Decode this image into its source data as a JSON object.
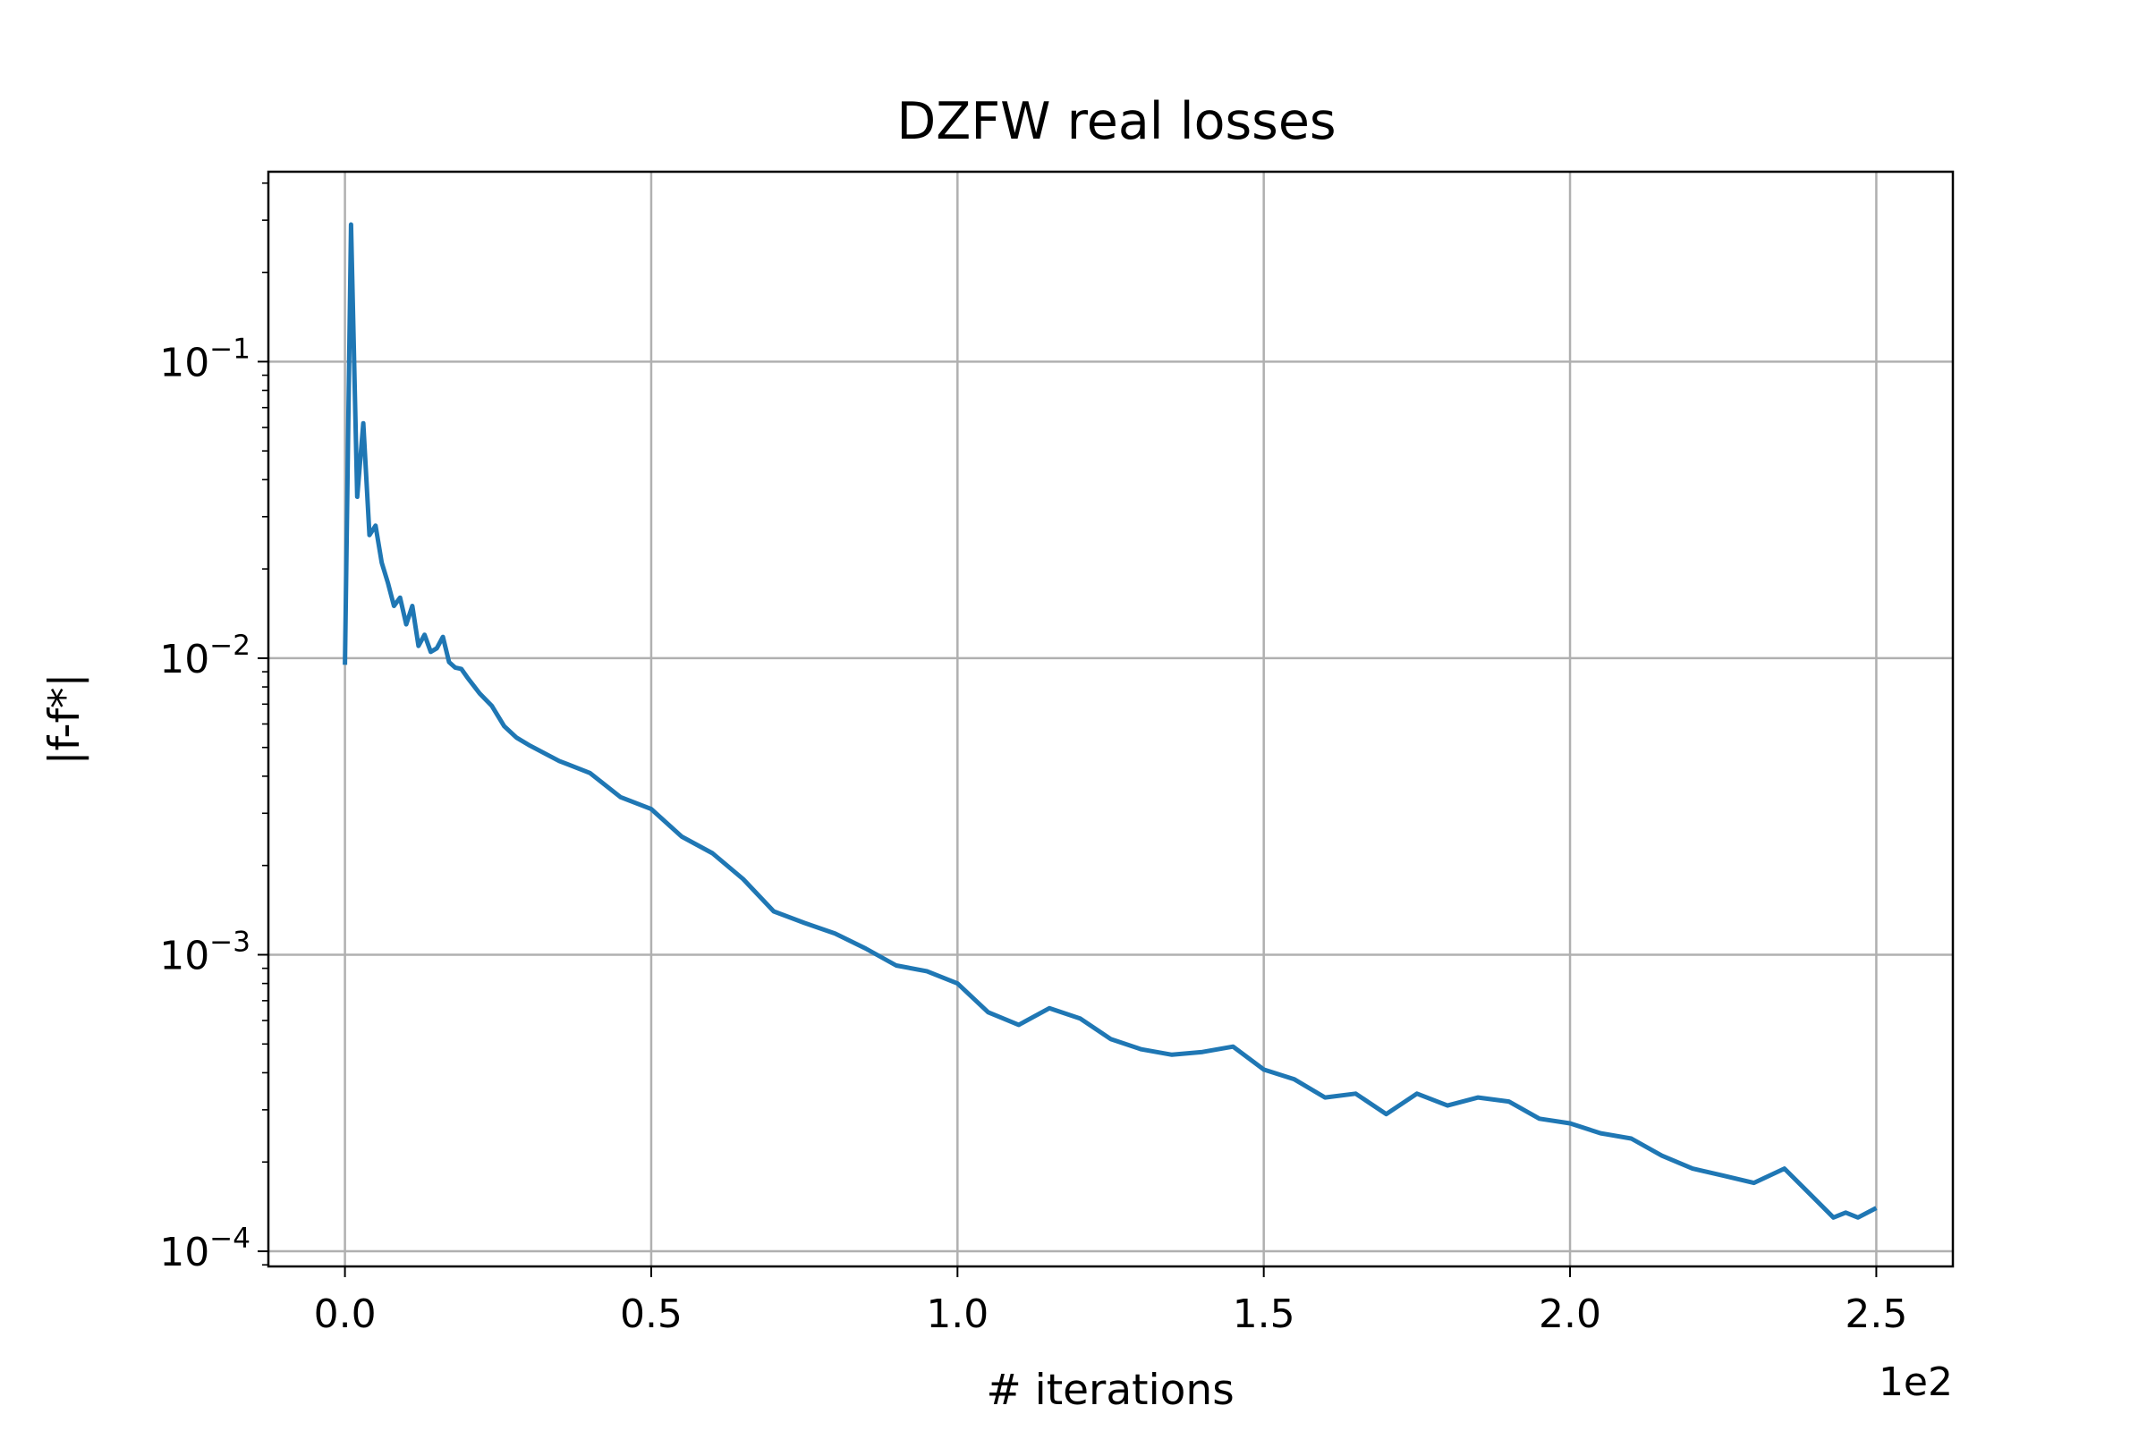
{
  "chart_data": {
    "type": "line",
    "title": "DZFW real losses",
    "xlabel": "# iterations",
    "ylabel": "|f-f*|",
    "x_offset_label": "1e2",
    "xscale": "linear",
    "yscale": "log",
    "xlim": [
      -12.5,
      262.5
    ],
    "ylim": [
      8.89e-05,
      0.437
    ],
    "grid": true,
    "legend": "none",
    "line_color": "#1f77b4",
    "x_ticks": [
      {
        "value": 0,
        "label": "0.0"
      },
      {
        "value": 50,
        "label": "0.5"
      },
      {
        "value": 100,
        "label": "1.0"
      },
      {
        "value": 150,
        "label": "1.5"
      },
      {
        "value": 200,
        "label": "2.0"
      },
      {
        "value": 250,
        "label": "2.5"
      }
    ],
    "y_ticks": [
      {
        "value": 0.1,
        "base": "10",
        "exp": "−1"
      },
      {
        "value": 0.01,
        "base": "10",
        "exp": "−2"
      },
      {
        "value": 0.001,
        "base": "10",
        "exp": "−3"
      },
      {
        "value": 0.0001,
        "base": "10",
        "exp": "−4"
      }
    ],
    "series": [
      {
        "color": "#1f77b4",
        "x": [
          0,
          1,
          2,
          3,
          4,
          5,
          6,
          7,
          8,
          9,
          10,
          11,
          12,
          13,
          14,
          15,
          16,
          17,
          18,
          19,
          20,
          22,
          24,
          26,
          28,
          30,
          35,
          40,
          45,
          50,
          55,
          60,
          65,
          70,
          75,
          80,
          85,
          90,
          95,
          100,
          105,
          110,
          115,
          120,
          125,
          130,
          135,
          140,
          145,
          150,
          155,
          160,
          165,
          170,
          175,
          180,
          185,
          190,
          195,
          200,
          205,
          210,
          215,
          220,
          225,
          230,
          235,
          240,
          243,
          245,
          247,
          250
        ],
        "y": [
          0.0095,
          0.29,
          0.035,
          0.062,
          0.026,
          0.028,
          0.021,
          0.018,
          0.015,
          0.016,
          0.013,
          0.015,
          0.011,
          0.012,
          0.0105,
          0.0108,
          0.0118,
          0.0097,
          0.0093,
          0.0092,
          0.0086,
          0.0076,
          0.0069,
          0.0059,
          0.0054,
          0.0051,
          0.0045,
          0.0041,
          0.0034,
          0.0031,
          0.0025,
          0.0022,
          0.0018,
          0.0014,
          0.00128,
          0.00118,
          0.00105,
          0.00092,
          0.00088,
          0.0008,
          0.00064,
          0.00058,
          0.00066,
          0.00061,
          0.00052,
          0.00048,
          0.00046,
          0.00047,
          0.00049,
          0.00041,
          0.00038,
          0.00033,
          0.00034,
          0.00029,
          0.00034,
          0.00031,
          0.00033,
          0.00032,
          0.00028,
          0.00027,
          0.00025,
          0.00024,
          0.00021,
          0.00019,
          0.00018,
          0.00017,
          0.00019,
          0.00015,
          0.00013,
          0.000135,
          0.00013,
          0.00014
        ]
      }
    ]
  }
}
